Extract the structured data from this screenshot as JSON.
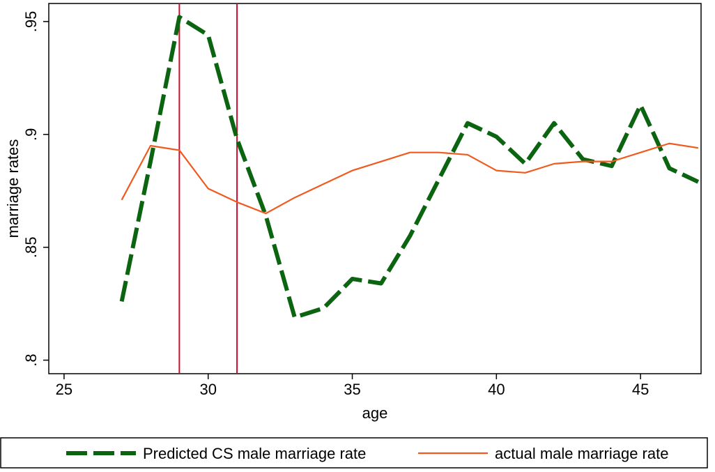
{
  "chart_data": {
    "type": "line",
    "x_label": "age",
    "y_label": "marriage rates",
    "x": [
      27,
      28,
      29,
      30,
      31,
      32,
      33,
      34,
      35,
      36,
      37,
      38,
      39,
      40,
      41,
      42,
      43,
      44,
      45,
      46,
      47
    ],
    "series": [
      {
        "name": "Predicted CS male marriage rate",
        "color": "#0b6410",
        "dashed": true,
        "values": [
          0.826,
          0.888,
          0.952,
          0.944,
          0.898,
          0.864,
          0.819,
          0.823,
          0.836,
          0.834,
          0.855,
          0.88,
          0.905,
          0.899,
          0.887,
          0.905,
          0.889,
          0.886,
          0.913,
          0.885,
          0.879
        ]
      },
      {
        "name": "actual male marriage rate",
        "color": "#f05a1e",
        "dashed": false,
        "values": [
          0.871,
          0.895,
          0.893,
          0.876,
          0.87,
          0.865,
          0.872,
          0.878,
          0.884,
          0.888,
          0.892,
          0.892,
          0.891,
          0.884,
          0.883,
          0.887,
          0.888,
          0.888,
          0.892,
          0.896,
          0.894
        ]
      }
    ],
    "vlines": [
      29,
      31
    ],
    "vline_color": "#c8102e",
    "xlim": [
      24.47,
      47.1
    ],
    "xticks": [
      25,
      30,
      35,
      40,
      45
    ],
    "ylim": [
      0.794,
      0.958
    ],
    "yticks": [
      {
        "value": 0.8,
        "label": ".8"
      },
      {
        "value": 0.85,
        "label": ".85"
      },
      {
        "value": 0.9,
        "label": ".9"
      },
      {
        "value": 0.95,
        "label": ".95"
      }
    ],
    "grid": false
  }
}
